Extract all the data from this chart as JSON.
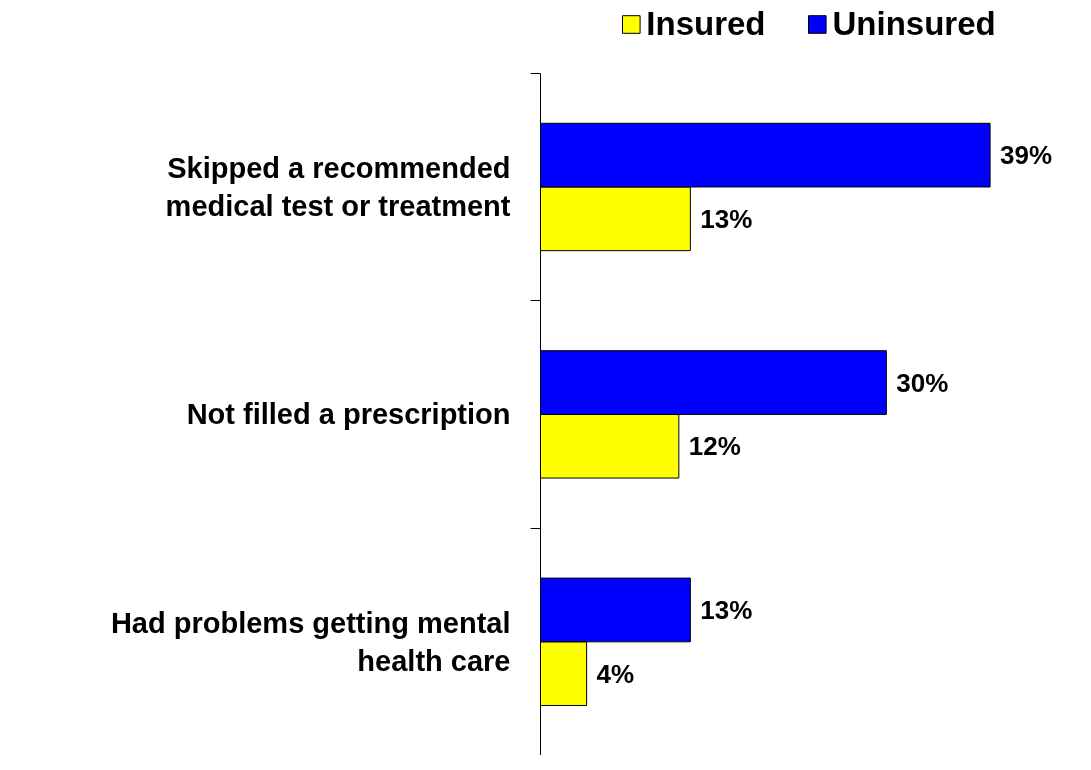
{
  "chart_data": {
    "type": "bar",
    "orientation": "horizontal",
    "categories": [
      "Skipped a recommended medical test or treatment",
      "Not filled a prescription",
      "Had problems getting mental health care"
    ],
    "series": [
      {
        "name": "Insured",
        "color": "#ffff00",
        "values": [
          13,
          12,
          4
        ],
        "value_labels": [
          "13%",
          "12%",
          "4%"
        ]
      },
      {
        "name": "Uninsured",
        "color": "#0000ff",
        "values": [
          39,
          30,
          13
        ],
        "value_labels": [
          "39%",
          "30%",
          "13%"
        ]
      }
    ],
    "legend": "top",
    "grid": false
  }
}
